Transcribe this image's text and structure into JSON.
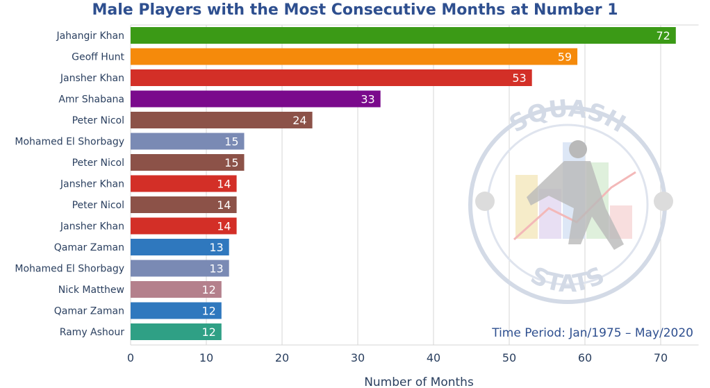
{
  "chart_data": {
    "type": "bar",
    "orientation": "horizontal",
    "title": "Male Players with the Most Consecutive Months at Number 1",
    "xlabel": "Number of Months",
    "ylabel": "",
    "xlim": [
      0,
      75
    ],
    "x_ticks": [
      0,
      10,
      20,
      30,
      40,
      50,
      60,
      70
    ],
    "grid": true,
    "categories": [
      "Jahangir Khan",
      "Geoff Hunt",
      "Jansher Khan",
      "Amr Shabana",
      "Peter Nicol",
      "Mohamed El Shorbagy",
      "Peter Nicol",
      "Jansher Khan",
      "Peter Nicol",
      "Jansher Khan",
      "Qamar Zaman",
      "Mohamed El Shorbagy",
      "Nick Matthew",
      "Qamar Zaman",
      "Ramy Ashour"
    ],
    "values": [
      72,
      59,
      53,
      33,
      24,
      15,
      15,
      14,
      14,
      14,
      13,
      13,
      12,
      12,
      12
    ],
    "colors": [
      "#3b9a16",
      "#f58a0b",
      "#d32f27",
      "#7a0a8c",
      "#8c5248",
      "#7a8ab4",
      "#8c5248",
      "#d32f27",
      "#8c5248",
      "#d32f27",
      "#2f78be",
      "#7a8ab4",
      "#b4808c",
      "#2f78be",
      "#2fa085"
    ],
    "annotation": "Time Period: Jan/1975 – May/2020"
  },
  "watermark": {
    "top_text": "SQUASH",
    "bottom_text": "STATS"
  }
}
